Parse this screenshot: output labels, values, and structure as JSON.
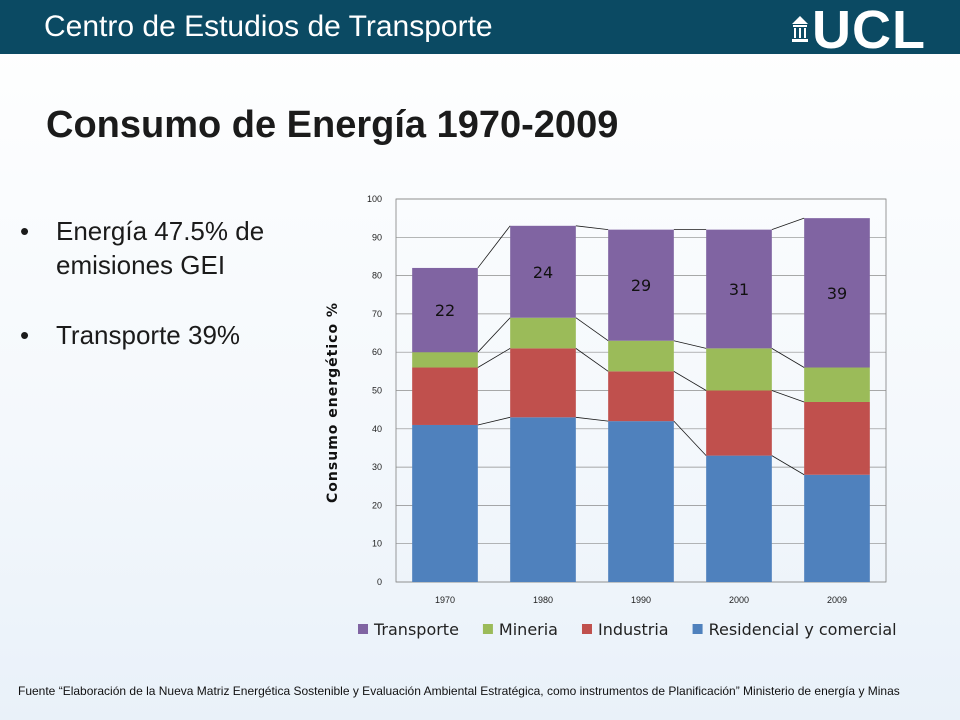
{
  "header": {
    "title": "Centro de Estudios de Transporte",
    "logo_text": "UCL"
  },
  "page_title": "Consumo de Energía 1970-2009",
  "bullets": [
    {
      "text": "Energía 47.5% de emisiones GEI"
    },
    {
      "text": "Transporte 39%"
    }
  ],
  "footnote": "Fuente “Elaboración de la Nueva Matriz Energética Sostenible y Evaluación Ambiental Estratégica, como instrumentos de Planificación” Ministerio de energía y Minas",
  "colors": {
    "header_bg": "#0b4a63",
    "residencial": "#4f81bd",
    "industria": "#c0504d",
    "mineria": "#9bbb59",
    "transporte": "#8064a2"
  },
  "chart_data": {
    "type": "bar",
    "stacked": true,
    "title": "",
    "xlabel": "",
    "ylabel": "Consumo energético %",
    "ylim": [
      0,
      100
    ],
    "yticks": [
      0,
      10,
      20,
      30,
      40,
      50,
      60,
      70,
      80,
      90,
      100
    ],
    "grid": true,
    "legend_position": "bottom",
    "categories": [
      "1970",
      "1980",
      "1990",
      "2000",
      "2009"
    ],
    "series": [
      {
        "name": "Residencial y comercial",
        "color": "#4f81bd",
        "values": [
          41,
          43,
          42,
          33,
          28
        ]
      },
      {
        "name": "Industria",
        "color": "#c0504d",
        "values": [
          15,
          18,
          13,
          17,
          19
        ]
      },
      {
        "name": "Mineria",
        "color": "#9bbb59",
        "values": [
          4,
          8,
          8,
          11,
          9
        ]
      },
      {
        "name": "Transporte",
        "color": "#8064a2",
        "values": [
          22,
          24,
          29,
          31,
          39
        ]
      }
    ],
    "legend_order": [
      "Transporte",
      "Mineria",
      "Industria",
      "Residencial y comercial"
    ],
    "data_labels": {
      "series": "Transporte",
      "values": [
        "22",
        "24",
        "29",
        "31",
        "39"
      ]
    }
  }
}
